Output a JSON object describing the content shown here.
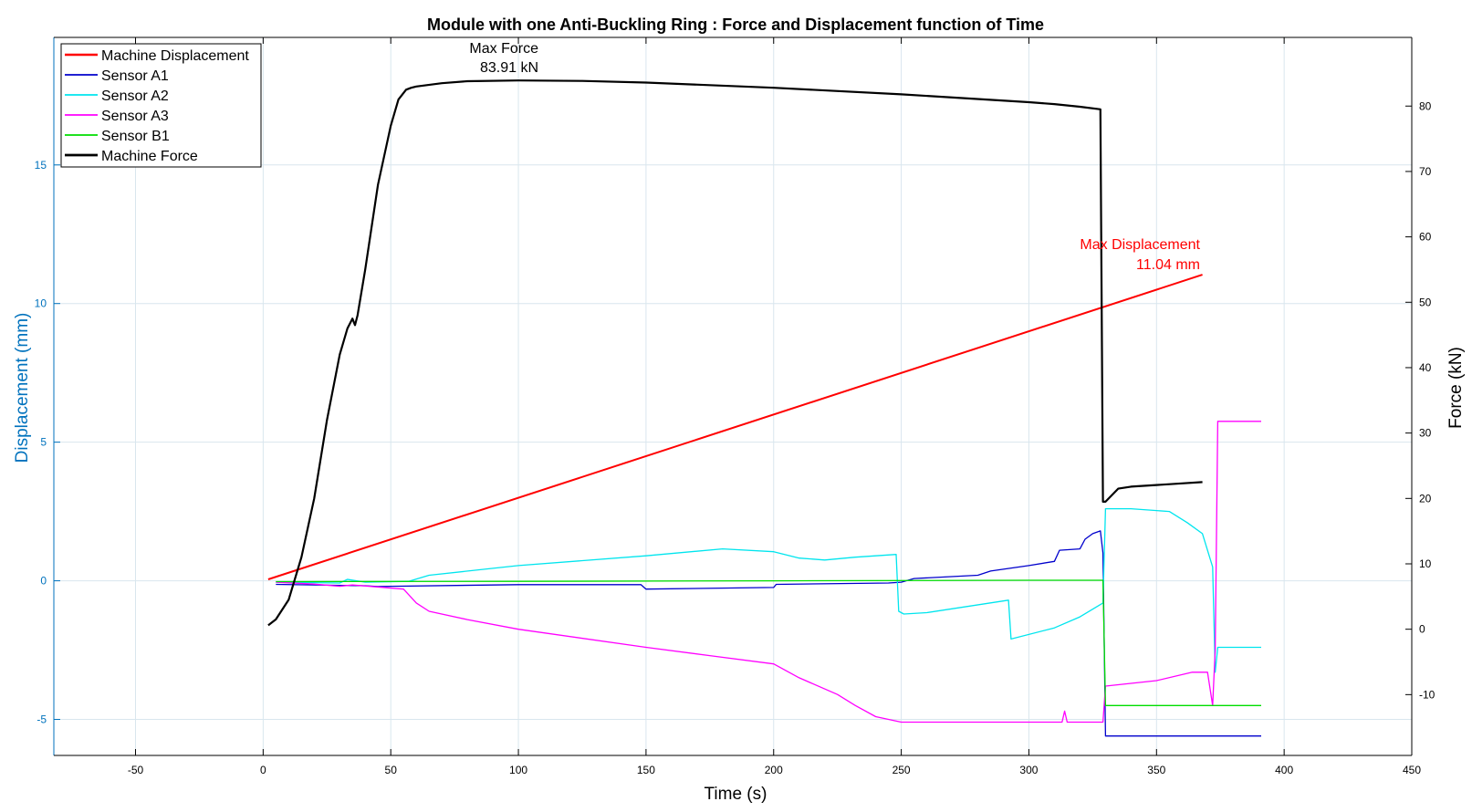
{
  "chart_data": {
    "type": "line",
    "title": "Module with one Anti-Buckling Ring : Force and Displacement function of Time",
    "xlabel": "Time (s)",
    "ylabel_left": "Displacement (mm)",
    "ylabel_right": "Force (kN)",
    "xlim": [
      -82,
      450
    ],
    "ylim_left": [
      -6.3,
      19.6
    ],
    "ylim_right": [
      -19.3,
      90.5
    ],
    "grid": true,
    "legend_placement": "top-left",
    "x_ticks": [
      -50,
      0,
      50,
      100,
      150,
      200,
      250,
      300,
      350,
      400,
      450
    ],
    "y_left_ticks": [
      -5,
      0,
      5,
      10,
      15
    ],
    "y_right_ticks": [
      -10,
      0,
      10,
      20,
      30,
      40,
      50,
      60,
      70,
      80
    ],
    "colors": {
      "axis_left": "#0072bd",
      "machine_displacement": "#ff0000",
      "sensor_a1": "#0000cc",
      "sensor_a2": "#00e5ee",
      "sensor_a3": "#ff00ff",
      "sensor_b1": "#00dd00",
      "machine_force": "#000000"
    },
    "series": [
      {
        "name": "Machine Displacement",
        "axis": "left",
        "color": "#ff0000",
        "width": 2,
        "x": [
          2,
          368
        ],
        "y": [
          0.05,
          11.04
        ]
      },
      {
        "name": "Sensor A1",
        "axis": "left",
        "color": "#0000cc",
        "width": 1.3,
        "x": [
          5,
          40,
          45,
          50,
          100,
          148,
          150,
          200,
          201,
          245,
          250,
          255,
          280,
          285,
          300,
          310,
          312,
          320,
          322,
          325,
          328,
          329,
          330,
          391
        ],
        "y": [
          -0.13,
          -0.18,
          -0.21,
          -0.2,
          -0.14,
          -0.14,
          -0.3,
          -0.24,
          -0.13,
          -0.08,
          -0.05,
          0.08,
          0.2,
          0.35,
          0.55,
          0.7,
          1.1,
          1.15,
          1.5,
          1.7,
          1.8,
          1.0,
          -5.6,
          -5.6
        ]
      },
      {
        "name": "Sensor A2",
        "axis": "left",
        "color": "#00e5ee",
        "width": 1.3,
        "x": [
          5,
          30,
          33,
          40,
          57,
          65,
          100,
          150,
          180,
          200,
          210,
          220,
          232,
          248,
          249,
          251,
          260,
          292,
          293,
          310,
          320,
          329,
          330,
          340,
          355,
          362,
          368,
          372,
          373,
          374,
          391
        ],
        "y": [
          -0.05,
          -0.08,
          0.05,
          -0.05,
          -0.02,
          0.2,
          0.55,
          0.9,
          1.15,
          1.05,
          0.82,
          0.75,
          0.85,
          0.95,
          -1.1,
          -1.2,
          -1.15,
          -0.7,
          -2.1,
          -1.7,
          -1.3,
          -0.8,
          2.6,
          2.6,
          2.5,
          2.1,
          1.7,
          0.5,
          -3.3,
          -2.4,
          -2.4
        ]
      },
      {
        "name": "Sensor A3",
        "axis": "left",
        "color": "#ff00ff",
        "width": 1.3,
        "x": [
          5,
          20,
          30,
          35,
          55,
          60,
          65,
          80,
          100,
          150,
          175,
          200,
          210,
          225,
          232,
          240,
          250,
          300,
          313,
          314,
          315,
          320,
          329,
          330,
          350,
          364,
          370,
          372,
          373,
          374,
          391
        ],
        "y": [
          -0.05,
          -0.12,
          -0.2,
          -0.15,
          -0.3,
          -0.8,
          -1.1,
          -1.4,
          -1.75,
          -2.4,
          -2.7,
          -3.0,
          -3.5,
          -4.1,
          -4.5,
          -4.9,
          -5.1,
          -5.1,
          -5.1,
          -4.7,
          -5.1,
          -5.1,
          -5.1,
          -3.8,
          -3.6,
          -3.3,
          -3.3,
          -4.5,
          -2.5,
          5.75,
          5.75
        ]
      },
      {
        "name": "Sensor B1",
        "axis": "left",
        "color": "#00dd00",
        "width": 1.3,
        "x": [
          5,
          100,
          200,
          300,
          329,
          330,
          391
        ],
        "y": [
          -0.03,
          -0.02,
          0.0,
          0.02,
          0.02,
          -4.5,
          -4.5
        ]
      },
      {
        "name": "Machine Force",
        "axis": "right",
        "color": "#000000",
        "width": 2.2,
        "x": [
          2,
          5,
          10,
          15,
          20,
          25,
          28,
          30,
          33,
          35,
          36,
          37,
          40,
          45,
          50,
          53,
          56,
          58,
          60,
          70,
          80,
          100,
          125,
          150,
          200,
          250,
          300,
          310,
          320,
          328,
          329,
          330,
          335,
          340,
          360,
          368
        ],
        "y": [
          0.6,
          1.5,
          4.5,
          11,
          20,
          32,
          38,
          42,
          46,
          47.5,
          46.5,
          48,
          55,
          68,
          77,
          81,
          82.5,
          82.8,
          83,
          83.5,
          83.8,
          83.91,
          83.85,
          83.6,
          82.8,
          81.8,
          80.6,
          80.3,
          79.9,
          79.5,
          19.5,
          19.5,
          21.5,
          21.8,
          22.3,
          22.5
        ]
      }
    ],
    "annotations": [
      {
        "line1": "Max Force",
        "line2": "83.91 kN",
        "color": "#000000"
      },
      {
        "line1": "Max Displacement",
        "line2": "11.04 mm",
        "color": "#ff0000"
      }
    ]
  }
}
